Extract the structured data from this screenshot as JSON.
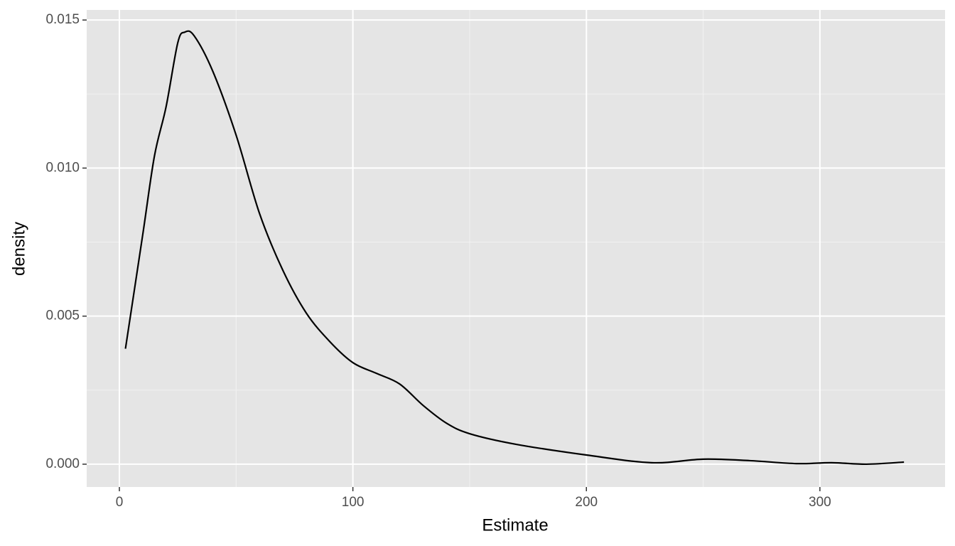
{
  "chart_data": {
    "type": "density",
    "x_label": "Estimate",
    "y_label": "density",
    "x": [
      2.6,
      10,
      15,
      20,
      25,
      28,
      32,
      40,
      50,
      60,
      70,
      80,
      90,
      100,
      110,
      120,
      130,
      140,
      150,
      170,
      200,
      228,
      250,
      270,
      290,
      305,
      320,
      336
    ],
    "values": [
      0.0039,
      0.00775,
      0.0104,
      0.01207,
      0.01423,
      0.01459,
      0.01447,
      0.01327,
      0.01111,
      0.00847,
      0.00655,
      0.00511,
      0.00415,
      0.00343,
      0.00307,
      0.00271,
      0.00199,
      0.00139,
      0.00103,
      0.00067,
      0.00031,
      5e-05,
      0.00017,
      0.00012,
      2e-05,
      5e-05,
      0.0,
      7e-05
    ],
    "color": "#000000",
    "xlim": [
      -14,
      353.6
    ],
    "ylim": [
      -0.00077,
      0.01534
    ],
    "xticks": [
      0,
      100,
      200,
      300
    ],
    "yticks": [
      {
        "value": 0,
        "label": "0.000"
      },
      {
        "value": 0.005,
        "label": "0.005"
      },
      {
        "value": 0.01,
        "label": "0.010"
      },
      {
        "value": 0.015,
        "label": "0.015"
      }
    ],
    "xminor": [
      50,
      150,
      250
    ],
    "yminor": [
      0.0025,
      0.0075,
      0.0125
    ],
    "grid": true
  }
}
